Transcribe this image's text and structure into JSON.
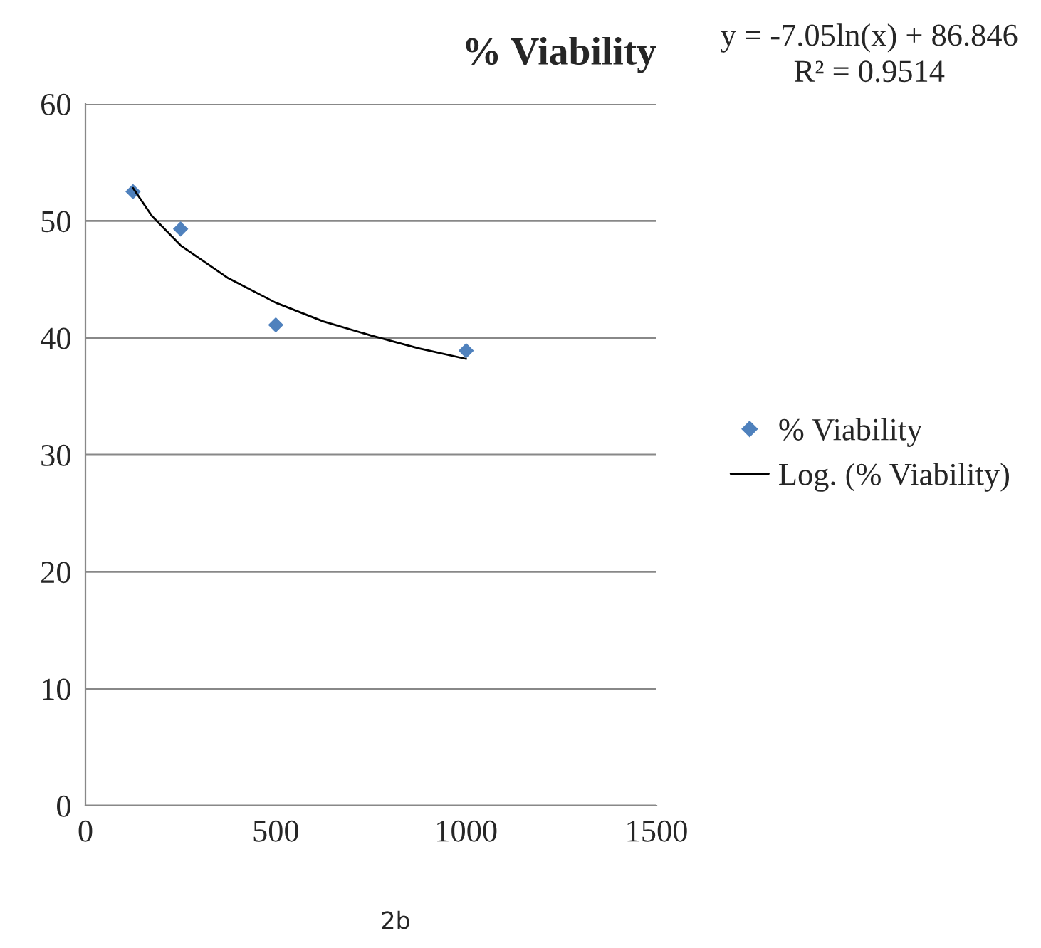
{
  "chart_data": {
    "type": "scatter",
    "title": "% Viability",
    "series": [
      {
        "name": "% Viability",
        "color": "#4f81bd",
        "marker": "diamond",
        "x": [
          125,
          250,
          500,
          1000
        ],
        "values": [
          52.5,
          49.3,
          41.1,
          38.9
        ]
      },
      {
        "name": "Log. (% Viability)",
        "type": "line",
        "color": "#000000",
        "marker": "none",
        "line_style": "solid",
        "x": [
          125,
          175,
          250,
          375,
          500,
          625,
          750,
          875,
          1000
        ],
        "values": [
          52.8,
          50.4,
          47.9,
          45.1,
          43.0,
          41.4,
          40.2,
          39.1,
          38.2
        ]
      }
    ],
    "xlim": [
      0,
      1500
    ],
    "xticks": [
      0,
      500,
      1000,
      1500
    ],
    "ylim": [
      0,
      60
    ],
    "yticks": [
      0,
      10,
      20,
      30,
      40,
      50,
      60
    ],
    "grid": "y",
    "legend": "right",
    "annotations": [
      "y = -7.05ln(x) + 86.846",
      "R² = 0.9514",
      "2b"
    ]
  }
}
